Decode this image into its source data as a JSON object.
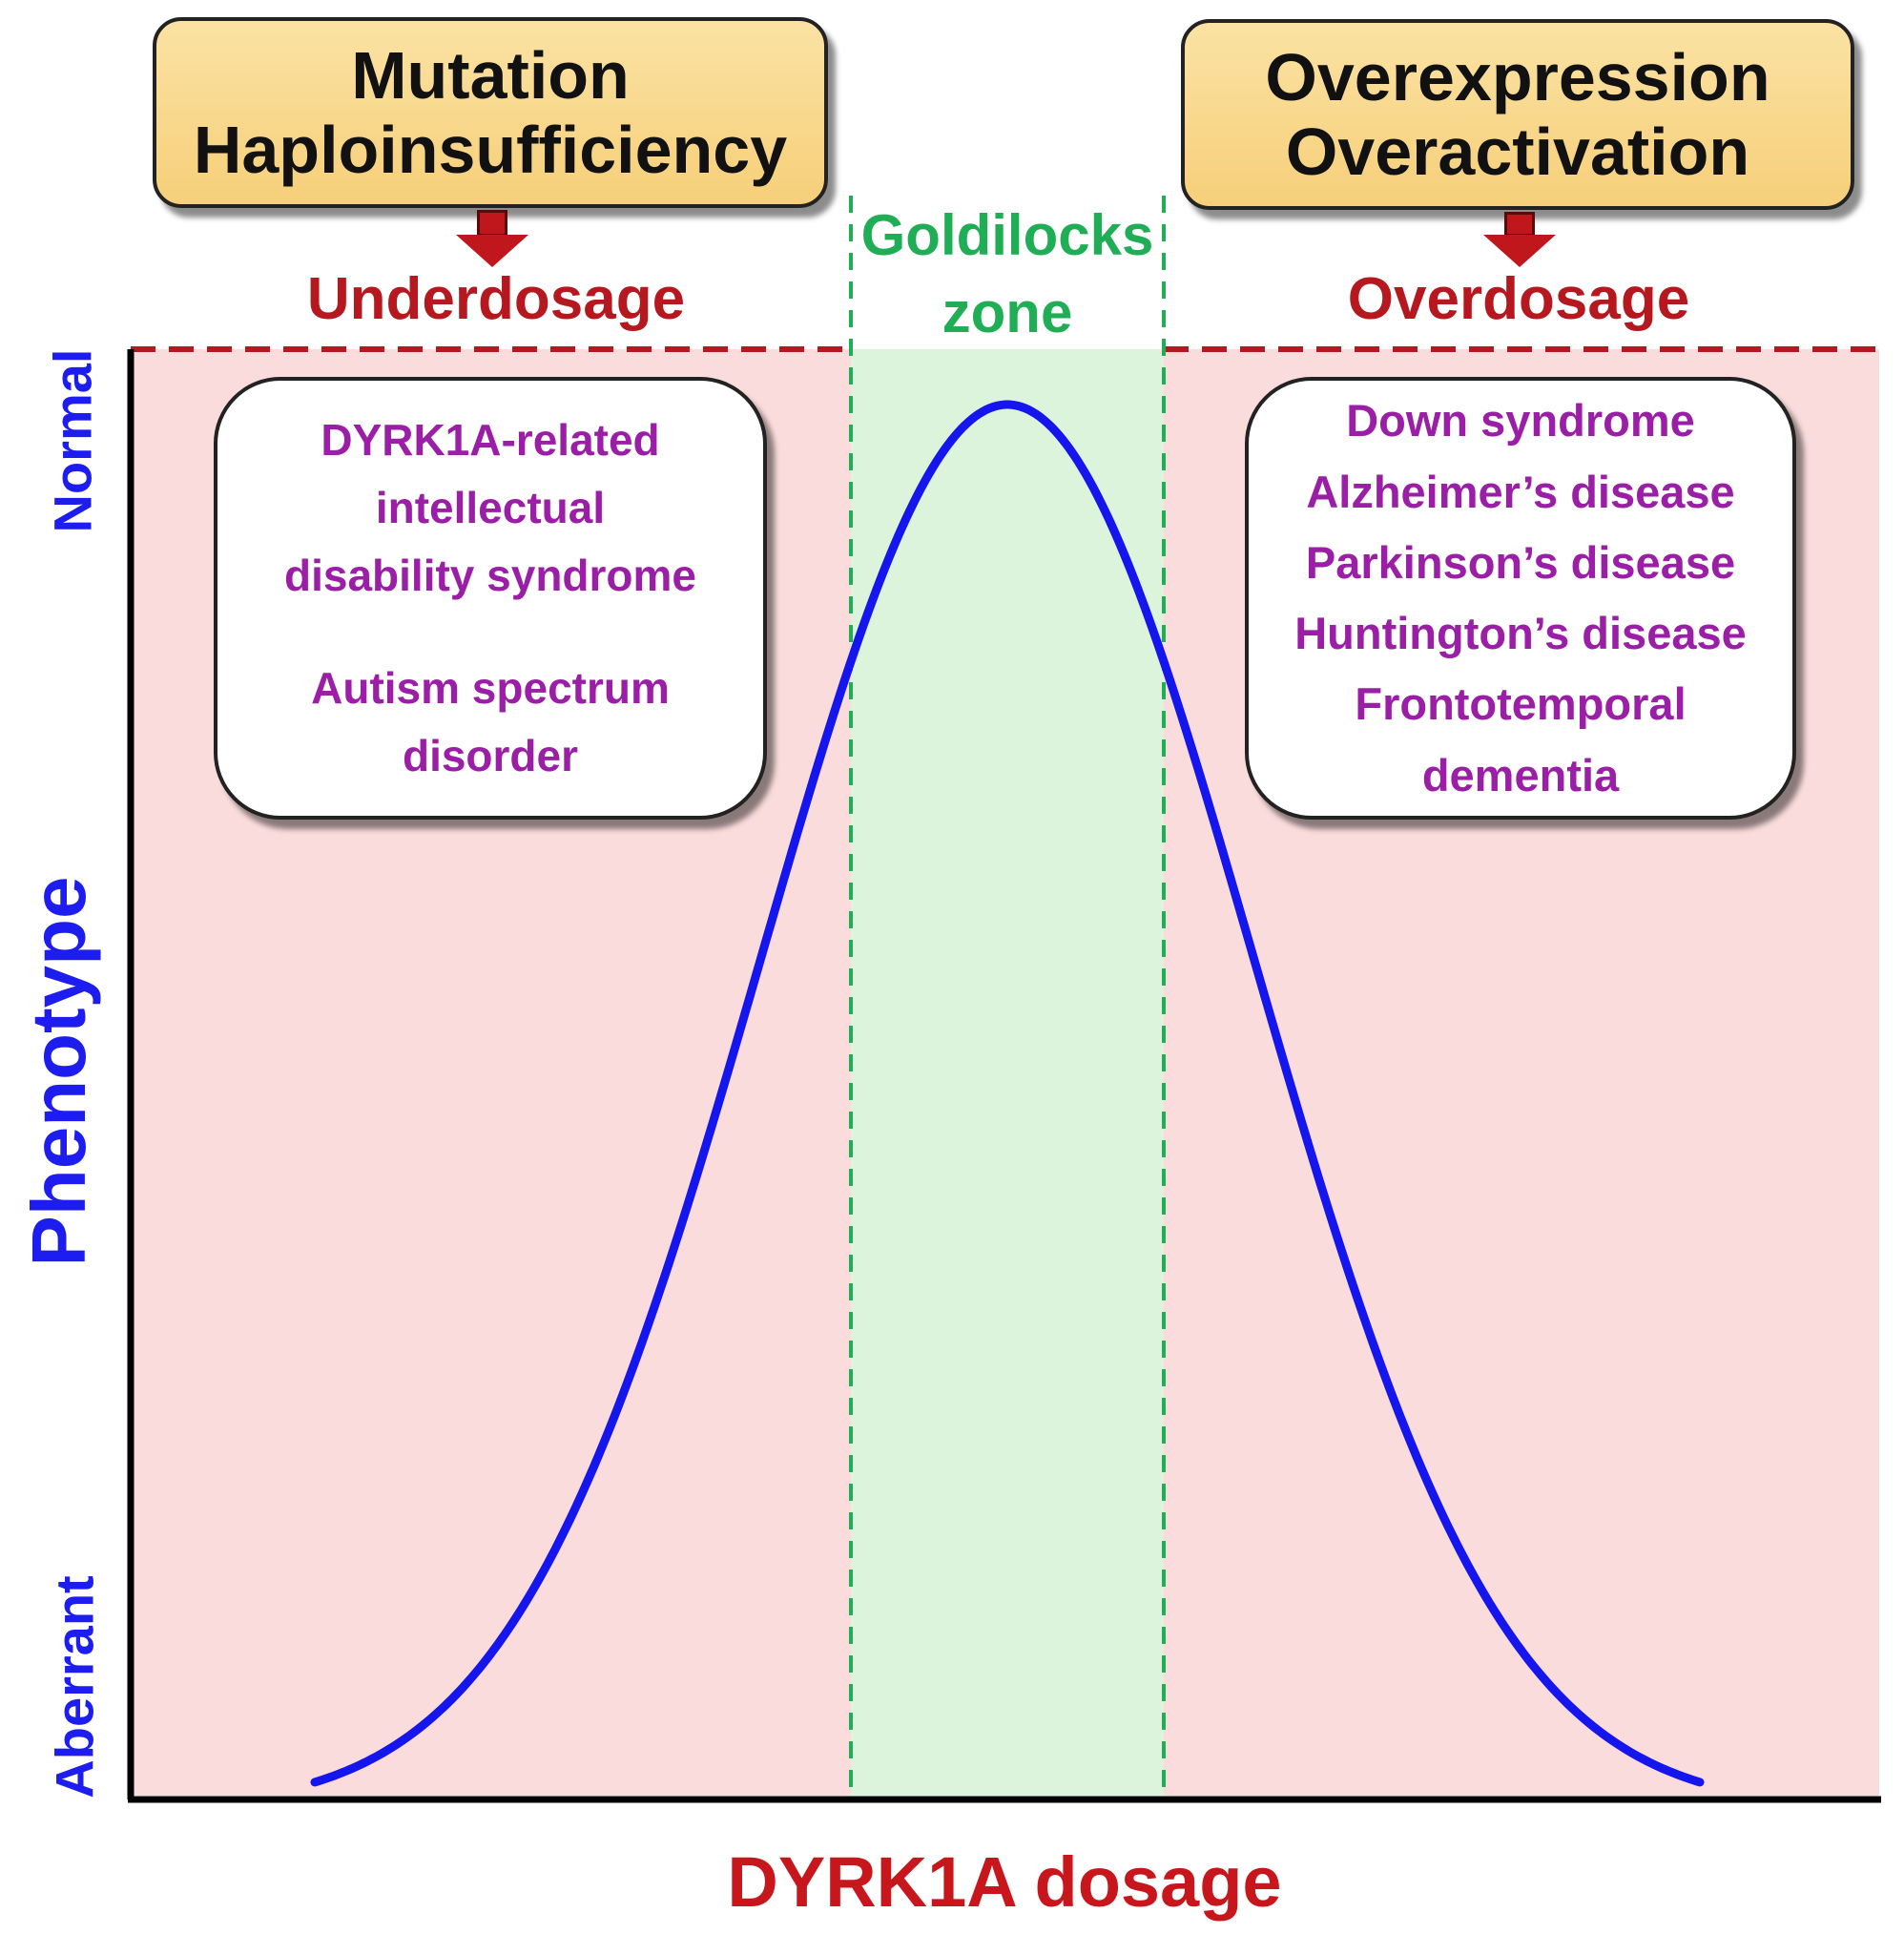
{
  "header_left": {
    "line1": "Mutation",
    "line2": "Haploinsufficiency"
  },
  "header_right": {
    "line1": "Overexpression",
    "line2": "Overactivation"
  },
  "dosage_left": "Underdosage",
  "dosage_right": "Overdosage",
  "zone": {
    "line1": "Goldilocks",
    "line2": "zone"
  },
  "left_conditions": {
    "group1": [
      "DYRK1A-related",
      "intellectual",
      "disability syndrome"
    ],
    "group2": [
      "Autism spectrum",
      "disorder"
    ]
  },
  "right_conditions": [
    "Down syndrome",
    "Alzheimer’s disease",
    "Parkinson’s disease",
    "Huntington’s disease",
    "Frontotemporal",
    "dementia"
  ],
  "axes": {
    "y_title": "Phenotype",
    "y_top": "Normal",
    "y_bottom": "Aberrant",
    "x_title": "DYRK1A dosage"
  },
  "colors": {
    "aberrant_region": "#fbdcdc",
    "goldilocks_region": "#dcf3dc",
    "curve": "#1515ee",
    "normal_line": "#b5181f",
    "zone_border": "#1fae55",
    "axis": "#000000"
  }
}
